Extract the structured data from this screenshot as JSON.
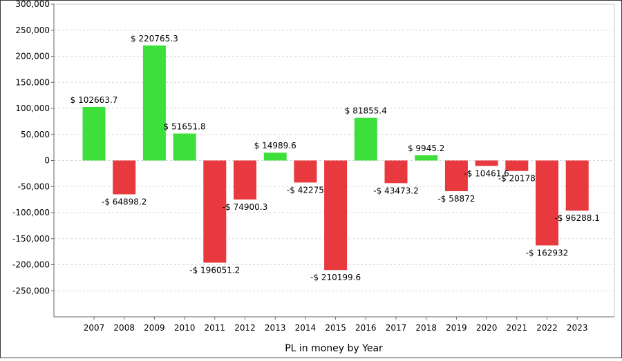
{
  "chart_data": {
    "type": "bar",
    "xlabel": "PL in money by Year",
    "ylabel": "",
    "ylim": [
      -300000,
      300000
    ],
    "yticks": [
      300000,
      250000,
      200000,
      150000,
      100000,
      50000,
      0,
      -50000,
      -100000,
      -150000,
      -200000,
      -250000
    ],
    "ytick_labels": [
      "300,000",
      "250,000",
      "200,000",
      "150,000",
      "100,000",
      "50,000",
      "0",
      "-50,000",
      "-100,000",
      "-150,000",
      "-200,000",
      "-250,000"
    ],
    "grid": true,
    "colors": {
      "positive": "#3de03a",
      "negative": "#e8393f",
      "grid": "#d8d8d8",
      "axis": "#666666"
    },
    "categories": [
      "2007",
      "2008",
      "2009",
      "2010",
      "2011",
      "2012",
      "2013",
      "2014",
      "2015",
      "2016",
      "2017",
      "2018",
      "2019",
      "2020",
      "2021",
      "2022",
      "2023"
    ],
    "values": [
      102663.7,
      -64898.2,
      220765.3,
      51651.8,
      -196051.2,
      -74900.3,
      14989.6,
      -42275,
      -210199.6,
      81855.4,
      -43473.2,
      9945.2,
      -58872,
      -10461.6,
      -20178,
      -162932,
      -96288.1
    ],
    "data_labels": [
      "$ 102663.7",
      "-$ 64898.2",
      "$ 220765.3",
      "$ 51651.8",
      "-$ 196051.2",
      "-$ 74900.3",
      "$ 14989.6",
      "-$ 42275",
      "-$ 210199.6",
      "$ 81855.4",
      "-$ 43473.2",
      "$ 9945.2",
      "-$ 58872",
      "-$ 10461.6",
      "-$ 20178",
      "-$ 162932",
      "-$ 96288.1"
    ]
  }
}
